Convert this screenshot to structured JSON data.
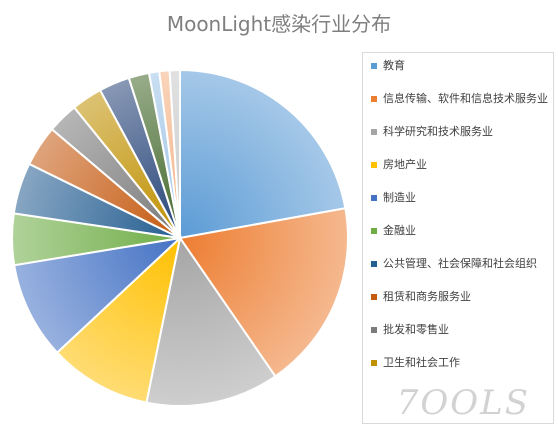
{
  "chart_data": {
    "type": "pie",
    "title": "MoonLight感染行业分布",
    "legend_position": "right",
    "categories": [
      "教育",
      "信息传输、软件和信息技术服务业",
      "科学研究和技术服务业",
      "房地产业",
      "制造业",
      "金融业",
      "公共管理、社会保障和社会组织",
      "租赁和商务服务业",
      "批发和零售业",
      "卫生和社会工作",
      "",
      "",
      "",
      "",
      ""
    ],
    "values": [
      22.5,
      18.5,
      13.0,
      10.0,
      9.5,
      5.0,
      5.0,
      4.0,
      3.0,
      3.0,
      3.0,
      2.0,
      1.0,
      1.0,
      1.0
    ],
    "colors": [
      "#5b9bd5",
      "#ed7d31",
      "#a5a5a5",
      "#ffc000",
      "#4472c4",
      "#70ad47",
      "#255e91",
      "#c55a11",
      "#7b7b7b",
      "#bf9000",
      "#264478",
      "#43682b",
      "#9dc3e6",
      "#f4b183",
      "#c9c9c9"
    ],
    "legend_visible_count": 10
  },
  "watermark": "7OOLS"
}
